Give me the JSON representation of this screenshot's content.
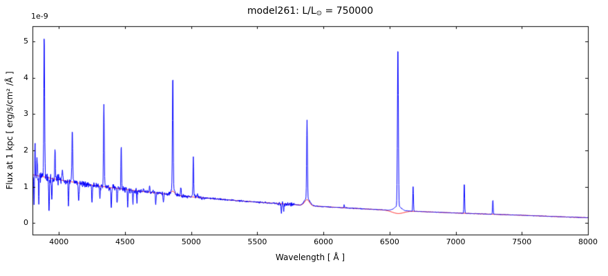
{
  "chart_data": {
    "type": "line",
    "title": {
      "prefix": "model261: L/L",
      "sun_symbol": "⊙",
      "suffix": " = 750000"
    },
    "xlabel": "Wavelength [ Å ]",
    "ylabel": "Flux at 1 kpc [ erg/s/cm² /Å ]",
    "offset_text": "1e-9",
    "flux_unit_scale": "1e-9",
    "xlim": [
      3800,
      8000
    ],
    "ylim": [
      -0.32,
      5.42
    ],
    "xticks": [
      4000,
      4500,
      5000,
      5500,
      6000,
      6500,
      7000,
      7500,
      8000
    ],
    "yticks": [
      0,
      1,
      2,
      3,
      4,
      5
    ],
    "xtick_labels": [
      "4000",
      "4500",
      "5000",
      "5500",
      "6000",
      "6500",
      "7000",
      "7500",
      "8000"
    ],
    "ytick_labels": [
      "0",
      "1",
      "2",
      "3",
      "4",
      "5"
    ],
    "grid": false,
    "legend": false,
    "series": [
      {
        "id": "observed-spectrum",
        "color": "#0000ff"
      },
      {
        "id": "model-continuum",
        "color": "#ff0000"
      }
    ],
    "continuum_anchors": [
      [
        3800,
        1.33
      ],
      [
        4000,
        1.19
      ],
      [
        4200,
        1.07
      ],
      [
        4400,
        0.97
      ],
      [
        4600,
        0.88
      ],
      [
        4800,
        0.8
      ],
      [
        5000,
        0.72
      ],
      [
        5200,
        0.66
      ],
      [
        5400,
        0.6
      ],
      [
        5600,
        0.55
      ],
      [
        5800,
        0.5
      ],
      [
        6000,
        0.45
      ],
      [
        6200,
        0.41
      ],
      [
        6400,
        0.37
      ],
      [
        6600,
        0.335
      ],
      [
        6800,
        0.305
      ],
      [
        7000,
        0.275
      ],
      [
        7200,
        0.25
      ],
      [
        7400,
        0.225
      ],
      [
        7600,
        0.2
      ],
      [
        7800,
        0.17
      ],
      [
        8000,
        0.145
      ]
    ],
    "emission_lines": [
      [
        3819,
        2.3,
        2.5
      ],
      [
        3835,
        1.9,
        2.5
      ],
      [
        3889,
        5.1,
        3.0
      ],
      [
        3970,
        2.05,
        2.5
      ],
      [
        4026,
        1.55,
        2.5
      ],
      [
        4101,
        2.55,
        3.0
      ],
      [
        4144,
        1.0,
        2.5
      ],
      [
        4340,
        3.25,
        3.0
      ],
      [
        4388,
        0.95,
        2.5
      ],
      [
        4471,
        2.2,
        2.5
      ],
      [
        4640,
        0.95,
        3.0
      ],
      [
        4686,
        1.05,
        2.5
      ],
      [
        4713,
        0.9,
        2.5
      ],
      [
        4861,
        3.95,
        3.0
      ],
      [
        4922,
        1.0,
        2.5
      ],
      [
        5016,
        1.78,
        2.5
      ],
      [
        5048,
        0.8,
        2.5
      ],
      [
        5876,
        2.65,
        3.0
      ],
      [
        6157,
        0.5,
        2.5
      ],
      [
        6563,
        4.78,
        3.5
      ],
      [
        6678,
        1.0,
        2.5
      ],
      [
        7065,
        1.12,
        2.5
      ],
      [
        7281,
        0.65,
        2.5
      ]
    ],
    "broad_bumps": [
      [
        4861,
        0.12,
        15
      ],
      [
        5016,
        0.05,
        10
      ],
      [
        5876,
        0.2,
        20
      ],
      [
        6563,
        0.12,
        25
      ]
    ],
    "absorption_dips": [
      [
        3812,
        0.85,
        2.5
      ],
      [
        3848,
        0.7,
        2.5
      ],
      [
        3925,
        1.0,
        2.5
      ],
      [
        3946,
        0.6,
        2.5
      ],
      [
        4072,
        0.65,
        2.5
      ],
      [
        4150,
        0.5,
        2.5
      ],
      [
        4250,
        0.5,
        2.5
      ],
      [
        4310,
        0.45,
        2.5
      ],
      [
        4396,
        0.6,
        2.5
      ],
      [
        4440,
        0.45,
        2.5
      ],
      [
        4520,
        0.45,
        2.5
      ],
      [
        4560,
        0.35,
        2.5
      ],
      [
        4590,
        0.35,
        2.5
      ],
      [
        4732,
        0.3,
        2.5
      ],
      [
        4790,
        0.25,
        2.5
      ],
      [
        5682,
        0.25,
        2.5
      ],
      [
        5700,
        0.18,
        2.5
      ]
    ],
    "noise_regions": [
      [
        3800,
        4000,
        0.1
      ],
      [
        4000,
        4600,
        0.055
      ],
      [
        4600,
        5100,
        0.03
      ],
      [
        5100,
        5650,
        0.015
      ],
      [
        5650,
        5780,
        0.035
      ],
      [
        5780,
        6300,
        0.01
      ],
      [
        6300,
        8000,
        0.006
      ]
    ],
    "red_line": {
      "broad_bumps": [
        [
          4861,
          0.1,
          15
        ],
        [
          5876,
          0.16,
          18
        ]
      ],
      "broad_dips": [
        [
          6563,
          0.08,
          45
        ]
      ]
    }
  }
}
